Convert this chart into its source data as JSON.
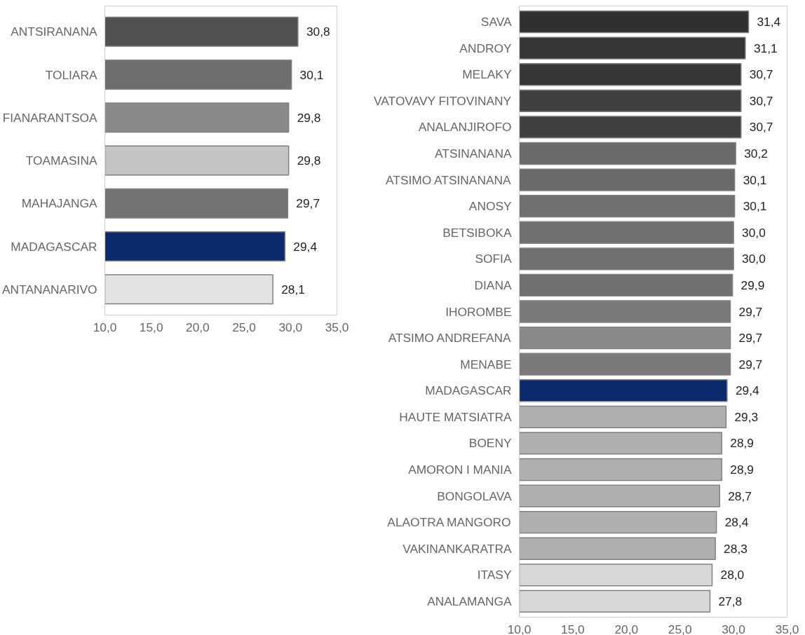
{
  "chart_data": [
    {
      "type": "bar",
      "orientation": "horizontal",
      "categories": [
        "ANTSIRANANA",
        "TOLIARA",
        "FIANARANTSOA",
        "TOAMASINA",
        "MAHAJANGA",
        "MADAGASCAR",
        "ANTANANARIVO"
      ],
      "values": [
        30.8,
        30.1,
        29.8,
        29.8,
        29.7,
        29.4,
        28.1
      ],
      "colors": [
        "#505050",
        "#6e6e6e",
        "#8a8a8a",
        "#c4c4c4",
        "#737373",
        "#0b2a6e",
        "#e2e2e2"
      ],
      "value_labels": [
        "30,8",
        "30,1",
        "29,8",
        "29,8",
        "29,7",
        "29,4",
        "28,1"
      ],
      "xlim": [
        10,
        35
      ],
      "xticks": [
        {
          "value": 10,
          "label": "10,0"
        },
        {
          "value": 15,
          "label": "15,0"
        },
        {
          "value": 20,
          "label": "20,0"
        },
        {
          "value": 25,
          "label": "25,0"
        },
        {
          "value": 30,
          "label": "30,0"
        },
        {
          "value": 35,
          "label": "35,0"
        }
      ],
      "grid": false
    },
    {
      "type": "bar",
      "orientation": "horizontal",
      "categories": [
        "SAVA",
        "ANDROY",
        "MELAKY",
        "VATOVAVY FITOVINANY",
        "ANALANJIROFO",
        "ATSINANANA",
        "ATSIMO ATSINANANA",
        "ANOSY",
        "BETSIBOKA",
        "SOFIA",
        "DIANA",
        "IHOROMBE",
        "ATSIMO ANDREFANA",
        "MENABE",
        "MADAGASCAR",
        "HAUTE MATSIATRA",
        "BOENY",
        "AMORON I MANIA",
        "BONGOLAVA",
        "ALAOTRA MANGORO",
        "VAKINANKARATRA",
        "ITASY",
        "ANALAMANGA"
      ],
      "values": [
        31.4,
        31.1,
        30.7,
        30.7,
        30.7,
        30.2,
        30.1,
        30.1,
        30.0,
        30.0,
        29.9,
        29.7,
        29.7,
        29.7,
        29.4,
        29.3,
        28.9,
        28.9,
        28.7,
        28.4,
        28.3,
        28.0,
        27.8
      ],
      "colors": [
        "#303030",
        "#353535",
        "#353535",
        "#404040",
        "#404040",
        "#6a6a6a",
        "#6a6a6a",
        "#707070",
        "#707070",
        "#707070",
        "#707070",
        "#7a7a7a",
        "#8a8a8a",
        "#7a7a7a",
        "#0b2a6e",
        "#b0b0b0",
        "#b0b0b0",
        "#b0b0b0",
        "#b0b0b0",
        "#b0b0b0",
        "#b0b0b0",
        "#d8d8d8",
        "#d8d8d8"
      ],
      "value_labels": [
        "31,4",
        "31,1",
        "30,7",
        "30,7",
        "30,7",
        "30,2",
        "30,1",
        "30,1",
        "30,0",
        "30,0",
        "29,9",
        "29,7",
        "29,7",
        "29,7",
        "29,4",
        "29,3",
        "28,9",
        "28,9",
        "28,7",
        "28,4",
        "28,3",
        "28,0",
        "27,8"
      ],
      "xlim": [
        10,
        35
      ],
      "xticks": [
        {
          "value": 10,
          "label": "10,0"
        },
        {
          "value": 15,
          "label": "15,0"
        },
        {
          "value": 20,
          "label": "20,0"
        },
        {
          "value": 25,
          "label": "25,0"
        },
        {
          "value": 30,
          "label": "30,0"
        },
        {
          "value": 35,
          "label": "35,0"
        }
      ],
      "grid": false
    }
  ]
}
